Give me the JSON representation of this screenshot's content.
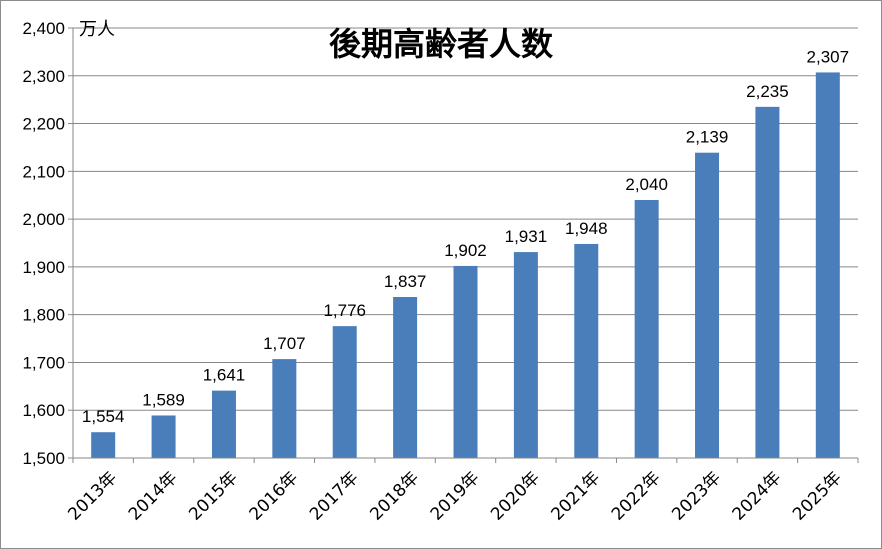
{
  "chart_data": {
    "type": "bar",
    "title": "後期高齢者人数",
    "unit_label": "万人",
    "categories": [
      "2013年",
      "2014年",
      "2015年",
      "2016年",
      "2017年",
      "2018年",
      "2019年",
      "2020年",
      "2021年",
      "2022年",
      "2023年",
      "2024年",
      "2025年"
    ],
    "values": [
      1554,
      1589,
      1641,
      1707,
      1776,
      1837,
      1902,
      1931,
      1948,
      2040,
      2139,
      2235,
      2307
    ],
    "value_labels": [
      "1,554",
      "1,589",
      "1,641",
      "1,707",
      "1,776",
      "1,837",
      "1,902",
      "1,931",
      "1,948",
      "2,040",
      "2,139",
      "2,235",
      "2,307"
    ],
    "ylim": [
      1500,
      2400
    ],
    "yticks": [
      1500,
      1600,
      1700,
      1800,
      1900,
      2000,
      2100,
      2200,
      2300,
      2400
    ],
    "ytick_labels": [
      "1,500",
      "1,600",
      "1,700",
      "1,800",
      "1,900",
      "2,000",
      "2,100",
      "2,200",
      "2,300",
      "2,400"
    ],
    "grid": true,
    "bar_color": "#4a7ebb",
    "gridline_color": "#878787"
  }
}
